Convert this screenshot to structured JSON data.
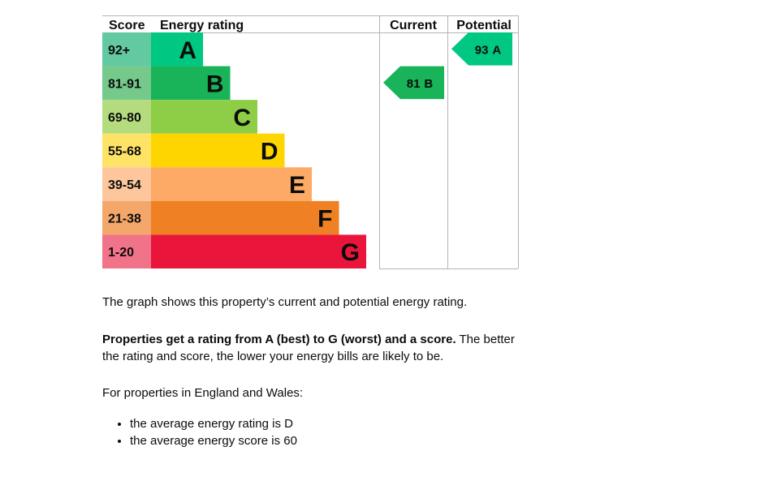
{
  "epc": {
    "headers": {
      "score": "Score",
      "rating": "Energy rating",
      "current": "Current",
      "potential": "Potential"
    },
    "bands": [
      {
        "score": "92+",
        "letter": "A",
        "color": "#00c781",
        "tint": "#62c9a1"
      },
      {
        "score": "81-91",
        "letter": "B",
        "color": "#19b459",
        "tint": "#75c98b"
      },
      {
        "score": "69-80",
        "letter": "C",
        "color": "#8dce46",
        "tint": "#b4dc7f"
      },
      {
        "score": "55-68",
        "letter": "D",
        "color": "#ffd500",
        "tint": "#ffe366"
      },
      {
        "score": "39-54",
        "letter": "E",
        "color": "#fcaa65",
        "tint": "#fdc69c"
      },
      {
        "score": "21-38",
        "letter": "F",
        "color": "#ef8023",
        "tint": "#f4a76a"
      },
      {
        "score": "1-20",
        "letter": "G",
        "color": "#e9153b",
        "tint": "#f17389"
      }
    ],
    "current": {
      "score": 81,
      "letter": "B"
    },
    "potential": {
      "score": 93,
      "letter": "A"
    }
  },
  "text": {
    "p1": "The graph shows this property’s current and potential energy rating.",
    "p2_bold": "Properties get a rating from A (best) to G (worst) and a score.",
    "p2_rest": " The better the rating and score, the lower your energy bills are likely to be.",
    "p3": "For properties in England and Wales:",
    "bullets": [
      "the average energy rating is D",
      "the average energy score is 60"
    ]
  }
}
